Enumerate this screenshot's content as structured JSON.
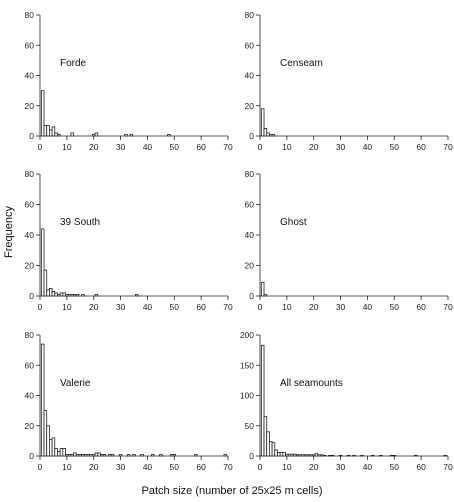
{
  "figure": {
    "ylabel": "Frequency",
    "xlabel": "Patch size (number of 25x25 m cells)"
  },
  "chart_data": [
    {
      "type": "bar",
      "title": "Forde",
      "bin_width": 1,
      "xlim": [
        0,
        70
      ],
      "ylim": [
        0,
        80
      ],
      "x_ticks": [
        0,
        10,
        20,
        30,
        40,
        50,
        60,
        70
      ],
      "y_ticks": [
        0,
        20,
        40,
        60,
        80
      ],
      "bins": [
        1,
        2,
        3,
        4,
        5,
        6,
        7,
        12,
        20,
        21,
        32,
        34,
        48
      ],
      "values": [
        30,
        7,
        7,
        4,
        6,
        2,
        1,
        2,
        1,
        2,
        1,
        1,
        1
      ]
    },
    {
      "type": "bar",
      "title": "Censeam",
      "bin_width": 1,
      "xlim": [
        0,
        70
      ],
      "ylim": [
        0,
        80
      ],
      "x_ticks": [
        0,
        10,
        20,
        30,
        40,
        50,
        60,
        70
      ],
      "y_ticks": [
        0,
        20,
        40,
        60,
        80
      ],
      "bins": [
        1,
        2,
        3,
        4,
        5
      ],
      "values": [
        18,
        5,
        2,
        1,
        1
      ]
    },
    {
      "type": "bar",
      "title": "39 South",
      "bin_width": 1,
      "xlim": [
        0,
        70
      ],
      "ylim": [
        0,
        80
      ],
      "x_ticks": [
        0,
        10,
        20,
        30,
        40,
        50,
        60,
        70
      ],
      "y_ticks": [
        0,
        20,
        40,
        60,
        80
      ],
      "bins": [
        1,
        2,
        3,
        4,
        5,
        6,
        7,
        8,
        9,
        10,
        11,
        12,
        13,
        14,
        16,
        21,
        36
      ],
      "values": [
        44,
        17,
        4,
        5,
        3,
        2,
        1,
        2,
        2,
        1,
        1,
        1,
        1,
        1,
        1,
        1,
        1
      ]
    },
    {
      "type": "bar",
      "title": "Ghost",
      "bin_width": 1,
      "xlim": [
        0,
        70
      ],
      "ylim": [
        0,
        80
      ],
      "x_ticks": [
        0,
        10,
        20,
        30,
        40,
        50,
        60,
        70
      ],
      "y_ticks": [
        0,
        20,
        40,
        60,
        80
      ],
      "bins": [
        1,
        2
      ],
      "values": [
        9,
        1
      ]
    },
    {
      "type": "bar",
      "title": "Valerie",
      "bin_width": 1,
      "xlim": [
        0,
        70
      ],
      "ylim": [
        0,
        80
      ],
      "x_ticks": [
        0,
        10,
        20,
        30,
        40,
        50,
        60,
        70
      ],
      "y_ticks": [
        0,
        20,
        40,
        60,
        80
      ],
      "bins": [
        1,
        2,
        3,
        4,
        5,
        6,
        7,
        8,
        9,
        10,
        11,
        12,
        13,
        14,
        15,
        16,
        17,
        18,
        19,
        20,
        21,
        22,
        23,
        24,
        26,
        27,
        30,
        33,
        35,
        38,
        42,
        45,
        49,
        50,
        58,
        69
      ],
      "values": [
        74,
        30,
        20,
        11,
        12,
        5,
        3,
        5,
        5,
        1,
        1,
        1,
        2,
        1,
        1,
        1,
        1,
        1,
        1,
        1,
        2,
        2,
        1,
        1,
        1,
        1,
        1,
        1,
        1,
        1,
        1,
        1,
        1,
        1,
        1,
        1
      ]
    },
    {
      "type": "bar",
      "title": "All seamounts",
      "bin_width": 1,
      "xlim": [
        0,
        70
      ],
      "ylim": [
        0,
        200
      ],
      "x_ticks": [
        0,
        10,
        20,
        30,
        40,
        50,
        60,
        70
      ],
      "y_ticks": [
        0,
        50,
        100,
        150,
        200
      ],
      "bins": [
        1,
        2,
        3,
        4,
        5,
        6,
        7,
        8,
        9,
        10,
        11,
        12,
        13,
        14,
        15,
        16,
        17,
        18,
        19,
        20,
        21,
        22,
        23,
        24,
        26,
        27,
        30,
        33,
        35,
        38,
        42,
        45,
        49,
        50,
        58,
        69
      ],
      "values": [
        183,
        65,
        40,
        24,
        22,
        10,
        6,
        6,
        6,
        3,
        3,
        3,
        3,
        2,
        2,
        2,
        2,
        2,
        2,
        2,
        4,
        2,
        2,
        1,
        1,
        1,
        1,
        1,
        1,
        1,
        1,
        1,
        1,
        1,
        1,
        1
      ]
    }
  ]
}
